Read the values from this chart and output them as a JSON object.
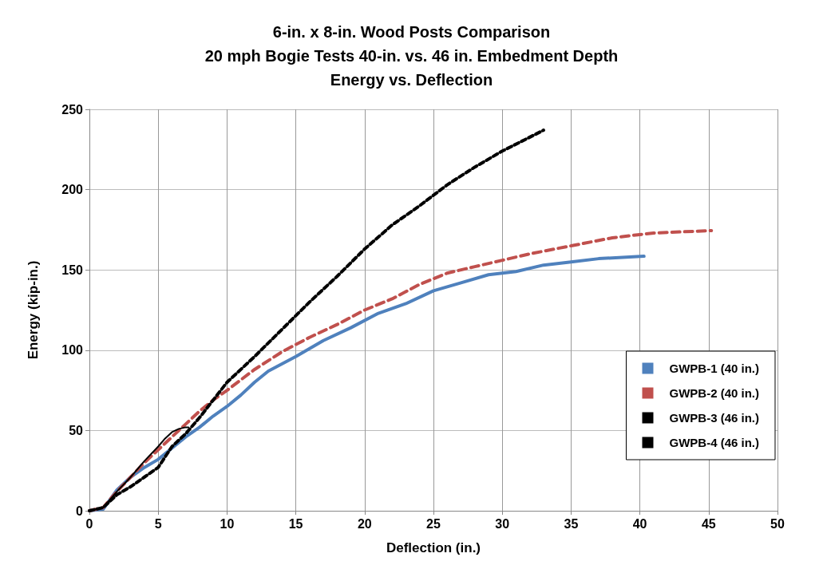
{
  "chart_data": {
    "type": "line",
    "title": "6-in. x 8-in. Wood Posts Comparison\n20 mph Bogie Tests 40-in. vs. 46 in. Embedment Depth\nEnergy vs. Deflection",
    "xlabel": "Deflection (in.)",
    "ylabel": "Energy (kip-in.)",
    "xlim": [
      0,
      50
    ],
    "xticks": [
      0,
      5,
      10,
      15,
      20,
      25,
      30,
      35,
      40,
      45,
      50
    ],
    "ylim": [
      0,
      250
    ],
    "yticks": [
      0,
      50,
      100,
      150,
      200,
      250
    ],
    "grid": true,
    "legend": "right",
    "marker": "none",
    "series": [
      {
        "name": "GWPB-1 (40 in.)",
        "color": "#4f81bd",
        "line_style": "solid",
        "x": [
          0,
          1,
          2,
          3,
          4,
          5,
          6,
          7,
          8,
          9,
          10,
          11,
          12,
          13,
          15,
          17,
          19,
          21,
          23,
          25,
          27,
          29,
          31,
          33,
          35,
          37,
          40.3
        ],
        "values": [
          0,
          1,
          13,
          21,
          27,
          32,
          39,
          46,
          52,
          59,
          65,
          72,
          80,
          87,
          96,
          106,
          114,
          123,
          129,
          137,
          142,
          147,
          149,
          153,
          155,
          157,
          158.5
        ]
      },
      {
        "name": "GWPB-2 (40 in.)",
        "color": "#c0504d",
        "line_style": "dashed",
        "x": [
          0,
          1,
          2,
          3,
          4,
          5,
          6,
          7,
          8,
          9,
          10,
          12,
          14,
          16,
          18,
          20,
          22,
          24,
          26,
          28,
          30,
          32,
          35,
          38,
          41,
          45.2
        ],
        "values": [
          0,
          2,
          12,
          21,
          30,
          38,
          46,
          54,
          62,
          69,
          75,
          88,
          99,
          108,
          116,
          125,
          132,
          141,
          148,
          152,
          156,
          160,
          165,
          170,
          173,
          174.5
        ]
      },
      {
        "name": "GWPB-3 (46 in.)",
        "color": "#000000",
        "line_style": "solid",
        "x": [
          0,
          1,
          2,
          3,
          4,
          5,
          5.5,
          6,
          6.5,
          7,
          7.2
        ],
        "values": [
          0,
          2,
          12,
          21,
          31,
          40,
          45,
          49,
          51,
          52,
          52
        ]
      },
      {
        "name": "GWPB-4 (46 in.)",
        "color": "#000000",
        "line_style": "dotted",
        "x": [
          0,
          1,
          2,
          3,
          4,
          5,
          6,
          7,
          8,
          9,
          10,
          12,
          14,
          16,
          18,
          20,
          22,
          24,
          26,
          28,
          30,
          33
        ],
        "values": [
          0,
          2,
          10,
          15,
          21,
          27,
          40,
          48,
          58,
          69,
          80,
          96,
          113,
          130,
          146,
          163,
          178,
          190,
          203,
          214,
          224,
          237
        ]
      }
    ]
  }
}
